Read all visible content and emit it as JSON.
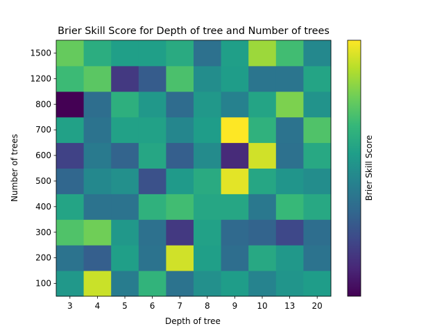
{
  "chart_data": {
    "type": "heatmap",
    "title": "Brier Skill Score for Depth of tree and Number of trees",
    "xlabel": "Depth of tree",
    "ylabel": "Number of trees",
    "colorbar_label": "Brier Skill Score",
    "colormap": "viridis",
    "colorbar_ticks": "none",
    "value_scale": "normalized 0 (dark purple) to 1 (yellow)",
    "x_categories": [
      "3",
      "4",
      "5",
      "6",
      "7",
      "8",
      "9",
      "10",
      "13",
      "20"
    ],
    "y_categories": [
      "100",
      "200",
      "300",
      "400",
      "500",
      "600",
      "700",
      "800",
      "1200",
      "1500"
    ],
    "values": [
      [
        0.53,
        0.92,
        0.42,
        0.65,
        0.38,
        0.5,
        0.55,
        0.45,
        0.52,
        0.55
      ],
      [
        0.38,
        0.3,
        0.56,
        0.38,
        0.93,
        0.56,
        0.36,
        0.6,
        0.53,
        0.38
      ],
      [
        0.72,
        0.78,
        0.53,
        0.37,
        0.17,
        0.57,
        0.34,
        0.32,
        0.22,
        0.36
      ],
      [
        0.58,
        0.38,
        0.38,
        0.64,
        0.69,
        0.59,
        0.59,
        0.4,
        0.67,
        0.6
      ],
      [
        0.33,
        0.47,
        0.5,
        0.25,
        0.54,
        0.61,
        0.96,
        0.59,
        0.52,
        0.49
      ],
      [
        0.2,
        0.41,
        0.32,
        0.59,
        0.3,
        0.48,
        0.12,
        0.93,
        0.37,
        0.6
      ],
      [
        0.57,
        0.38,
        0.57,
        0.57,
        0.46,
        0.55,
        1.0,
        0.64,
        0.38,
        0.72
      ],
      [
        0.0,
        0.36,
        0.63,
        0.53,
        0.35,
        0.53,
        0.44,
        0.58,
        0.8,
        0.51
      ],
      [
        0.68,
        0.74,
        0.17,
        0.29,
        0.71,
        0.49,
        0.55,
        0.39,
        0.39,
        0.58
      ],
      [
        0.76,
        0.62,
        0.56,
        0.56,
        0.61,
        0.37,
        0.56,
        0.85,
        0.69,
        0.47
      ]
    ],
    "grid": false,
    "legend": "none"
  }
}
